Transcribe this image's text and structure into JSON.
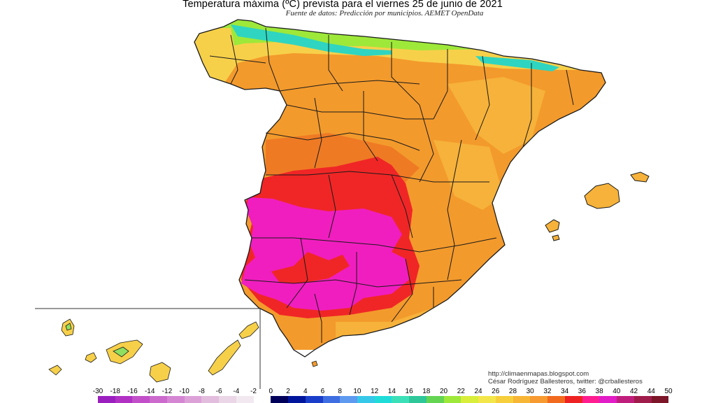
{
  "title": "Temperatura máxima (ºC) prevista para el viernes 25 de junio de 2021",
  "subtitle": "Fuente de datos: Predicción por municipios. AEMET OpenData",
  "credits": {
    "url": "http://climaenmapas.blogspot.com",
    "author": "César Rodríguez Ballesteros, twitter: @crballesteros"
  },
  "legend": {
    "labels": [
      "-30",
      "-18",
      "-16",
      "-14",
      "-12",
      "-10",
      "-8",
      "-6",
      "-4",
      "-2",
      "0",
      "2",
      "4",
      "6",
      "8",
      "10",
      "12",
      "14",
      "16",
      "18",
      "20",
      "22",
      "24",
      "26",
      "28",
      "30",
      "32",
      "34",
      "36",
      "38",
      "40",
      "42",
      "44",
      "50"
    ],
    "colors": [
      "#9b1fbf",
      "#b131c4",
      "#c24fc9",
      "#cc6acd",
      "#d586d3",
      "#dca2d8",
      "#e3bddd",
      "#ead6e6",
      "#f2e9f0",
      "#ffffff",
      "#00005a",
      "#00149c",
      "#1a3ec9",
      "#3e6ee2",
      "#5d9af0",
      "#36c8e8",
      "#1fdcd9",
      "#3ce0b8",
      "#2ec79a",
      "#64d453",
      "#9ee83a",
      "#d8ee3a",
      "#f3e64a",
      "#f7cf3c",
      "#f7b636",
      "#f79a30",
      "#f26a1e",
      "#ee2222",
      "#ff1d8f",
      "#e21cc6",
      "#c01e7c",
      "#a01c4a",
      "#7c1628"
    ]
  },
  "map_colors": {
    "north_green": "#8fe060",
    "north_cyan": "#2fd5c0",
    "yellow": "#f7d04a",
    "light_orange": "#f6b23a",
    "orange": "#f39a2c",
    "dark_orange": "#ef7a24",
    "red": "#f02626",
    "magenta": "#f01ebf",
    "border": "#1a1a1a"
  }
}
